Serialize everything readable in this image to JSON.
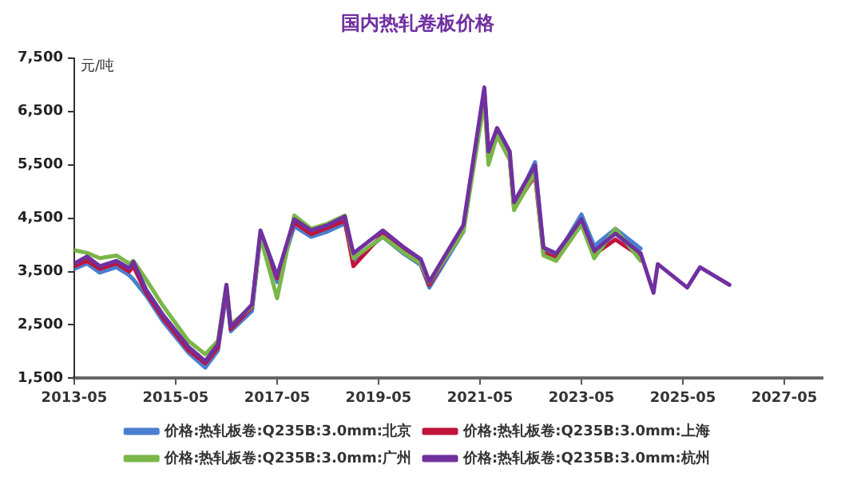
{
  "chart_data": {
    "type": "line",
    "title": "国内热轧卷板价格",
    "ylabel": "元/吨",
    "xlim": [
      "2013-05",
      "2028-02"
    ],
    "xticks": [
      "2013-05",
      "2015-05",
      "2017-05",
      "2019-05",
      "2021-05",
      "2023-05",
      "2025-05",
      "2027-05"
    ],
    "ylim": [
      1500,
      7500
    ],
    "yticks": [
      {
        "value": 1500,
        "label": "1,500"
      },
      {
        "value": 2500,
        "label": "2,500"
      },
      {
        "value": 3500,
        "label": "3,500"
      },
      {
        "value": 4500,
        "label": "4,500"
      },
      {
        "value": 5500,
        "label": "5,500"
      },
      {
        "value": 6500,
        "label": "6,500"
      },
      {
        "value": 7500,
        "label": "7,500"
      }
    ],
    "grid": false,
    "legend": "bottom",
    "marker": "none",
    "line_style": "solid",
    "series": [
      {
        "name": "价格:热轧板卷:Q235B:3.0mm:北京",
        "color": "#4a7fcf",
        "x": [
          "2013-05",
          "2013-08",
          "2013-11",
          "2014-03",
          "2014-06",
          "2014-07",
          "2014-10",
          "2015-02",
          "2015-08",
          "2015-12",
          "2016-03",
          "2016-05",
          "2016-06",
          "2016-11",
          "2017-01",
          "2017-05",
          "2017-09",
          "2018-01",
          "2018-05",
          "2018-09",
          "2018-11",
          "2019-06",
          "2019-11",
          "2020-03",
          "2020-05",
          "2021-01",
          "2021-06",
          "2021-07",
          "2021-09",
          "2021-12",
          "2022-01",
          "2022-06",
          "2022-08",
          "2022-11",
          "2023-05",
          "2023-08",
          "2024-01",
          "2024-07"
        ],
        "values": [
          3550,
          3650,
          3480,
          3580,
          3430,
          3350,
          3050,
          2560,
          1980,
          1700,
          2020,
          3100,
          2380,
          2760,
          4150,
          3300,
          4350,
          4150,
          4250,
          4400,
          3720,
          4150,
          3830,
          3620,
          3200,
          4250,
          6850,
          5650,
          6100,
          5650,
          4700,
          5550,
          3900,
          3780,
          4570,
          3980,
          4300,
          3930
        ]
      },
      {
        "name": "价格:热轧板卷:Q235B:3.0mm:上海",
        "color": "#c0143c",
        "x": [
          "2013-05",
          "2013-08",
          "2013-11",
          "2014-03",
          "2014-06",
          "2014-07",
          "2014-10",
          "2015-02",
          "2015-08",
          "2015-12",
          "2016-03",
          "2016-05",
          "2016-06",
          "2016-11",
          "2017-01",
          "2017-05",
          "2017-09",
          "2018-01",
          "2018-05",
          "2018-09",
          "2018-11",
          "2019-06",
          "2019-11",
          "2020-03",
          "2020-05",
          "2021-01",
          "2021-06",
          "2021-07",
          "2021-09",
          "2021-12",
          "2022-01",
          "2022-06",
          "2022-08",
          "2022-11",
          "2023-05",
          "2023-08",
          "2024-01",
          "2024-07"
        ],
        "values": [
          3600,
          3700,
          3550,
          3650,
          3500,
          3600,
          3100,
          2620,
          2030,
          1780,
          2080,
          3200,
          2420,
          2830,
          4200,
          3380,
          4420,
          4200,
          4320,
          4450,
          3600,
          4200,
          3880,
          3650,
          3250,
          4300,
          6850,
          5600,
          6050,
          5600,
          4700,
          5300,
          3850,
          3750,
          4420,
          3820,
          4100,
          3780
        ]
      },
      {
        "name": "价格:热轧板卷:Q235B:3.0mm:广州",
        "color": "#7ab648",
        "x": [
          "2013-05",
          "2013-08",
          "2013-11",
          "2014-03",
          "2014-06",
          "2014-07",
          "2014-10",
          "2015-02",
          "2015-08",
          "2015-12",
          "2016-03",
          "2016-05",
          "2016-06",
          "2016-11",
          "2017-01",
          "2017-05",
          "2017-09",
          "2018-01",
          "2018-05",
          "2018-09",
          "2018-11",
          "2019-06",
          "2019-11",
          "2020-03",
          "2020-05",
          "2021-01",
          "2021-06",
          "2021-07",
          "2021-09",
          "2021-12",
          "2022-01",
          "2022-06",
          "2022-08",
          "2022-11",
          "2023-05",
          "2023-08",
          "2024-01",
          "2024-07"
        ],
        "values": [
          3900,
          3850,
          3750,
          3800,
          3650,
          3700,
          3350,
          2850,
          2200,
          1950,
          2200,
          3250,
          2500,
          2850,
          4150,
          3000,
          4550,
          4300,
          4400,
          4550,
          3750,
          4150,
          3850,
          3650,
          3300,
          4250,
          6700,
          5500,
          6050,
          5600,
          4650,
          5350,
          3800,
          3700,
          4380,
          3750,
          4300,
          3700
        ]
      },
      {
        "name": "价格:热轧板卷:Q235B:3.0mm:杭州",
        "color": "#7030a0",
        "x": [
          "2013-05",
          "2013-08",
          "2013-11",
          "2014-03",
          "2014-06",
          "2014-07",
          "2014-10",
          "2015-02",
          "2015-08",
          "2015-12",
          "2016-03",
          "2016-05",
          "2016-06",
          "2016-11",
          "2017-01",
          "2017-05",
          "2017-09",
          "2018-01",
          "2018-05",
          "2018-09",
          "2018-11",
          "2019-06",
          "2019-11",
          "2020-03",
          "2020-05",
          "2021-01",
          "2021-06",
          "2021-07",
          "2021-09",
          "2021-12",
          "2022-01",
          "2022-06",
          "2022-08",
          "2022-11",
          "2023-05",
          "2023-08",
          "2024-01",
          "2024-07",
          "2024-10",
          "2024-11",
          "2025-06",
          "2025-09",
          "2026-04"
        ],
        "values": [
          3650,
          3780,
          3600,
          3700,
          3560,
          3680,
          3160,
          2680,
          2090,
          1820,
          2140,
          3250,
          2460,
          2880,
          4270,
          3420,
          4480,
          4270,
          4370,
          4530,
          3840,
          4270,
          3950,
          3730,
          3310,
          4370,
          6950,
          5750,
          6190,
          5750,
          4800,
          5490,
          3950,
          3840,
          4480,
          3890,
          4210,
          3840,
          3100,
          3640,
          3200,
          3580,
          3250
        ]
      }
    ]
  }
}
